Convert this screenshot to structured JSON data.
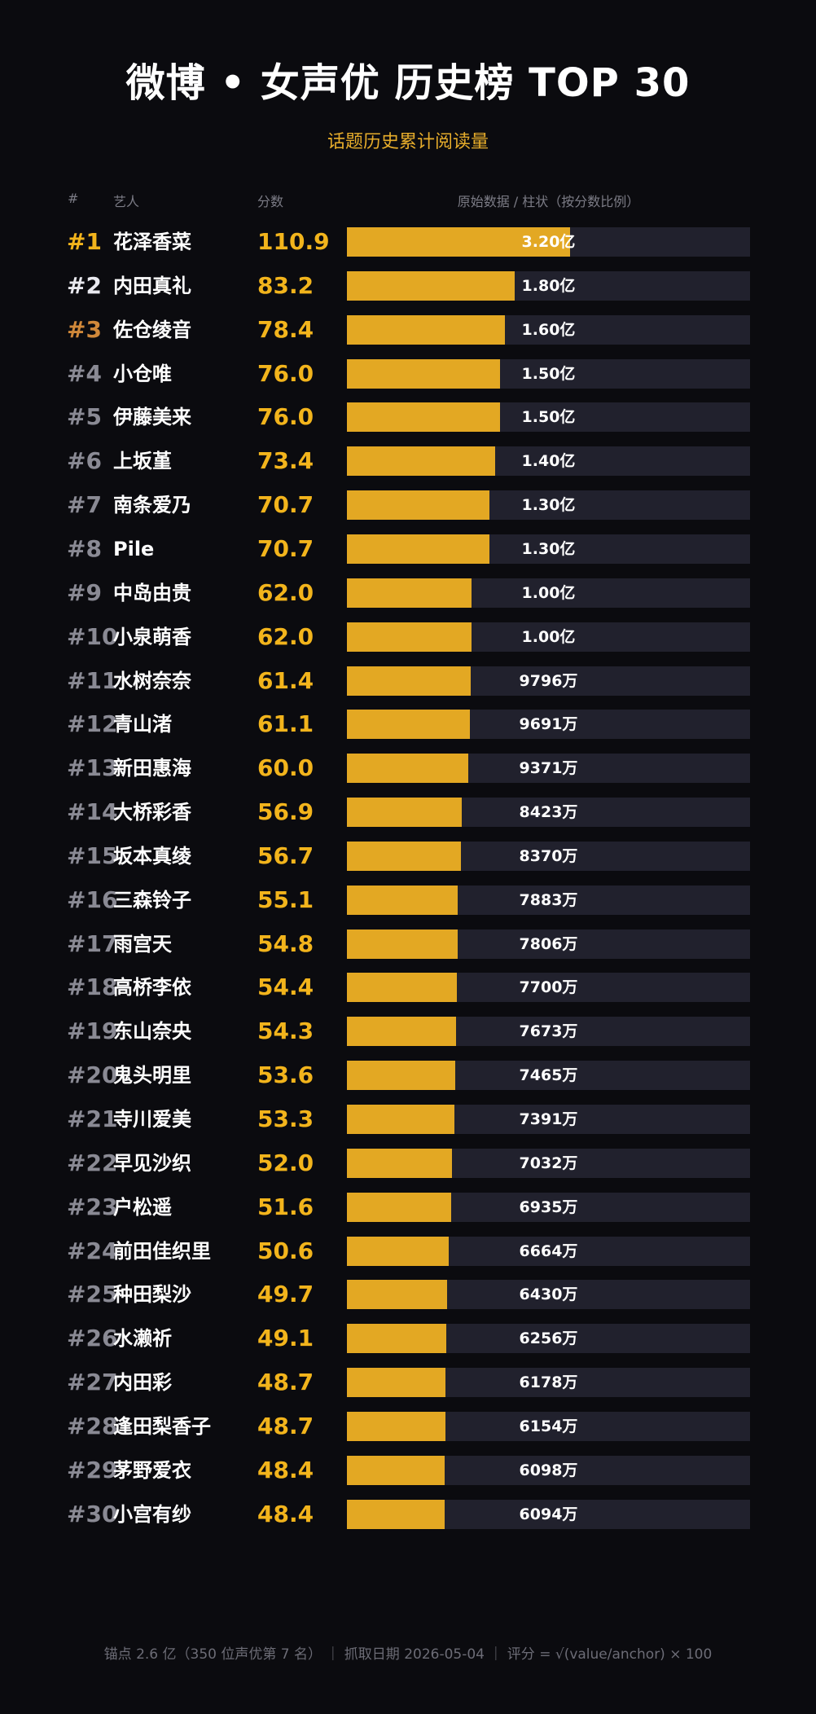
{
  "title": "微博 • 女声优 历史榜 TOP 30",
  "subtitle": "话题历史累计阅读量",
  "headers": {
    "rank": "#",
    "artist": "艺人",
    "score": "分数",
    "bar": "原始数据 / 柱状（按分数比例）"
  },
  "footer": "锚点 2.6 亿（350 位声优第 7 名） ｜ 抓取日期 2026-05-04 ｜ 评分 = √(value/anchor) × 100",
  "colors": {
    "background": "#0b0b0f",
    "bar": "#e3a823",
    "track": "#21212d",
    "score": "#f2b41c",
    "rank1": "#f2b41c",
    "rank2": "#e9e9ef",
    "rank3": "#d0883a",
    "rank_other": "#8a8a94"
  },
  "chart_data": {
    "type": "bar",
    "orientation": "horizontal",
    "xlim": [
      0,
      200
    ],
    "categories": [
      "花泽香菜",
      "内田真礼",
      "佐仓绫音",
      "小仓唯",
      "伊藤美来",
      "上坂堇",
      "南条爱乃",
      "Pile",
      "中岛由贵",
      "小泉萌香",
      "水树奈奈",
      "青山渚",
      "新田惠海",
      "大桥彩香",
      "坂本真绫",
      "三森铃子",
      "雨宫天",
      "高桥李依",
      "东山奈央",
      "鬼头明里",
      "寺川爱美",
      "早见沙织",
      "户松遥",
      "前田佳织里",
      "种田梨沙",
      "水濑祈",
      "内田彩",
      "逢田梨香子",
      "茅野爱衣",
      "小宫有纱"
    ],
    "series": [
      {
        "values": [
          110.9,
          83.2,
          78.4,
          76.0,
          76.0,
          73.4,
          70.7,
          70.7,
          62.0,
          62.0,
          61.4,
          61.1,
          60.0,
          56.9,
          56.7,
          55.1,
          54.8,
          54.4,
          54.3,
          53.6,
          53.3,
          52.0,
          51.6,
          50.6,
          49.7,
          49.1,
          48.7,
          48.7,
          48.4,
          48.4
        ]
      }
    ],
    "rows": [
      {
        "rank": "#1",
        "name": "花泽香菜",
        "score": "110.9",
        "raw": "3.20亿"
      },
      {
        "rank": "#2",
        "name": "内田真礼",
        "score": "83.2",
        "raw": "1.80亿"
      },
      {
        "rank": "#3",
        "name": "佐仓绫音",
        "score": "78.4",
        "raw": "1.60亿"
      },
      {
        "rank": "#4",
        "name": "小仓唯",
        "score": "76.0",
        "raw": "1.50亿"
      },
      {
        "rank": "#5",
        "name": "伊藤美来",
        "score": "76.0",
        "raw": "1.50亿"
      },
      {
        "rank": "#6",
        "name": "上坂堇",
        "score": "73.4",
        "raw": "1.40亿"
      },
      {
        "rank": "#7",
        "name": "南条爱乃",
        "score": "70.7",
        "raw": "1.30亿"
      },
      {
        "rank": "#8",
        "name": "Pile",
        "score": "70.7",
        "raw": "1.30亿"
      },
      {
        "rank": "#9",
        "name": "中岛由贵",
        "score": "62.0",
        "raw": "1.00亿"
      },
      {
        "rank": "#10",
        "name": "小泉萌香",
        "score": "62.0",
        "raw": "1.00亿"
      },
      {
        "rank": "#11",
        "name": "水树奈奈",
        "score": "61.4",
        "raw": "9796万"
      },
      {
        "rank": "#12",
        "name": "青山渚",
        "score": "61.1",
        "raw": "9691万"
      },
      {
        "rank": "#13",
        "name": "新田惠海",
        "score": "60.0",
        "raw": "9371万"
      },
      {
        "rank": "#14",
        "name": "大桥彩香",
        "score": "56.9",
        "raw": "8423万"
      },
      {
        "rank": "#15",
        "name": "坂本真绫",
        "score": "56.7",
        "raw": "8370万"
      },
      {
        "rank": "#16",
        "name": "三森铃子",
        "score": "55.1",
        "raw": "7883万"
      },
      {
        "rank": "#17",
        "name": "雨宫天",
        "score": "54.8",
        "raw": "7806万"
      },
      {
        "rank": "#18",
        "name": "高桥李依",
        "score": "54.4",
        "raw": "7700万"
      },
      {
        "rank": "#19",
        "name": "东山奈央",
        "score": "54.3",
        "raw": "7673万"
      },
      {
        "rank": "#20",
        "name": "鬼头明里",
        "score": "53.6",
        "raw": "7465万"
      },
      {
        "rank": "#21",
        "name": "寺川爱美",
        "score": "53.3",
        "raw": "7391万"
      },
      {
        "rank": "#22",
        "name": "早见沙织",
        "score": "52.0",
        "raw": "7032万"
      },
      {
        "rank": "#23",
        "name": "户松遥",
        "score": "51.6",
        "raw": "6935万"
      },
      {
        "rank": "#24",
        "name": "前田佳织里",
        "score": "50.6",
        "raw": "6664万"
      },
      {
        "rank": "#25",
        "name": "种田梨沙",
        "score": "49.7",
        "raw": "6430万"
      },
      {
        "rank": "#26",
        "name": "水濑祈",
        "score": "49.1",
        "raw": "6256万"
      },
      {
        "rank": "#27",
        "name": "内田彩",
        "score": "48.7",
        "raw": "6178万"
      },
      {
        "rank": "#28",
        "name": "逢田梨香子",
        "score": "48.7",
        "raw": "6154万"
      },
      {
        "rank": "#29",
        "name": "茅野爱衣",
        "score": "48.4",
        "raw": "6098万"
      },
      {
        "rank": "#30",
        "name": "小宫有纱",
        "score": "48.4",
        "raw": "6094万"
      }
    ]
  }
}
